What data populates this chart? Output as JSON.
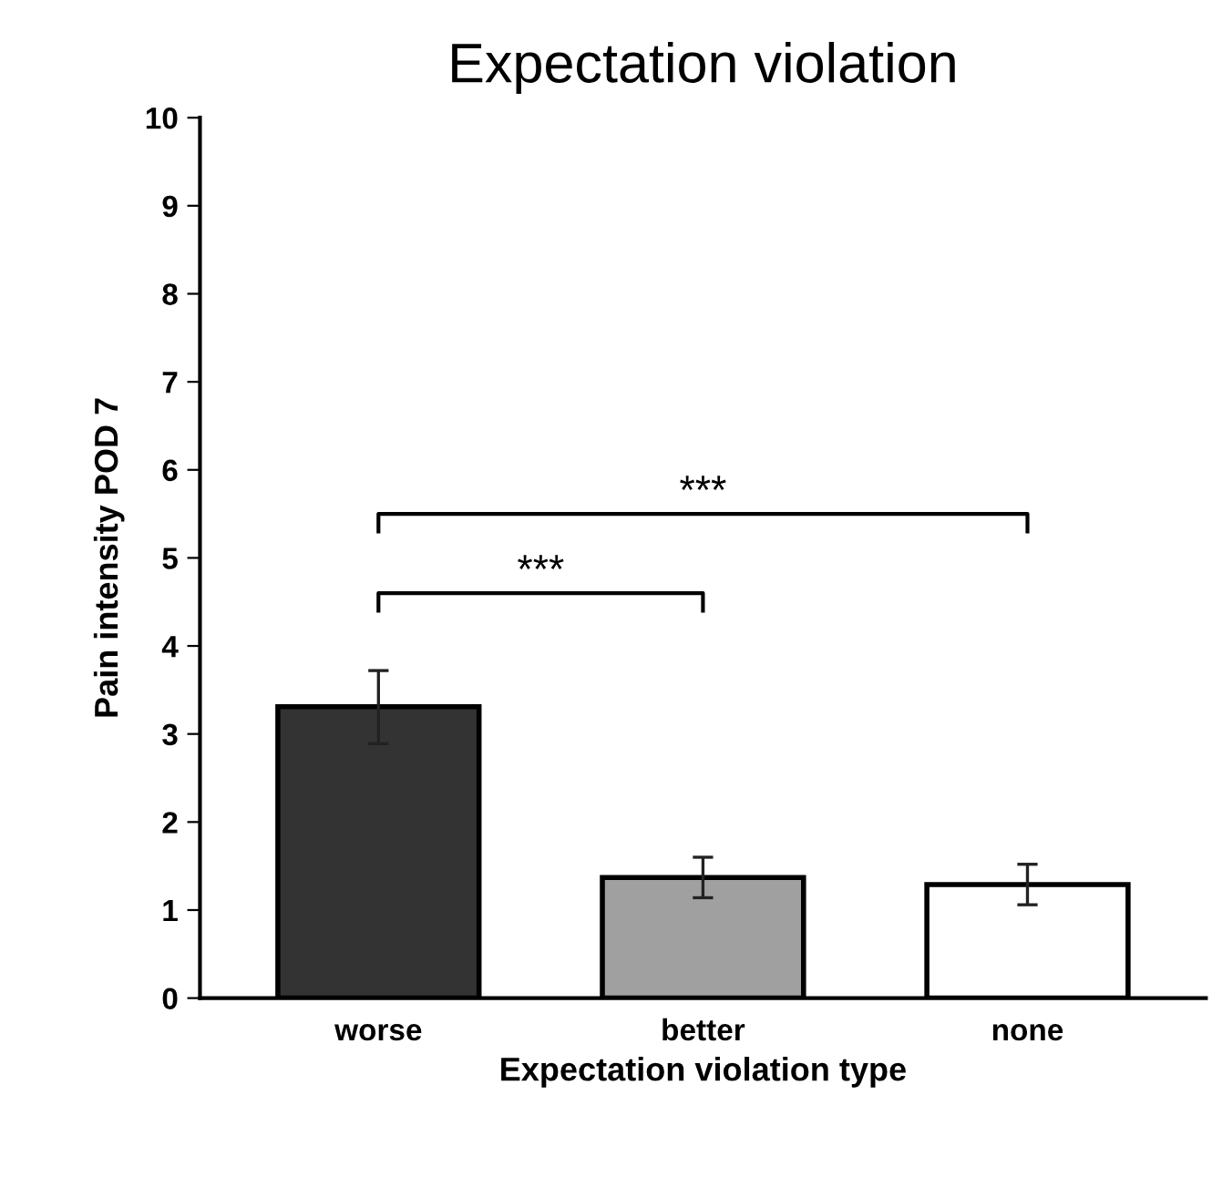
{
  "chart_data": {
    "type": "bar",
    "title": "Expectation violation",
    "xlabel": "Expectation violation type",
    "ylabel": "Pain intensity POD 7",
    "categories": [
      "worse",
      "better",
      "none"
    ],
    "values": [
      3.31,
      1.37,
      1.29
    ],
    "colors": [
      "#333333",
      "#a0a0a0",
      "#ffffff"
    ],
    "errors": [
      [
        2.89,
        3.72
      ],
      [
        1.14,
        1.6
      ],
      [
        1.06,
        1.52
      ]
    ],
    "ylim": [
      0,
      10
    ],
    "yticks": [
      0,
      1,
      2,
      3,
      4,
      5,
      6,
      7,
      8,
      9,
      10
    ],
    "grid": false,
    "annotations": [
      "***",
      "***"
    ]
  }
}
